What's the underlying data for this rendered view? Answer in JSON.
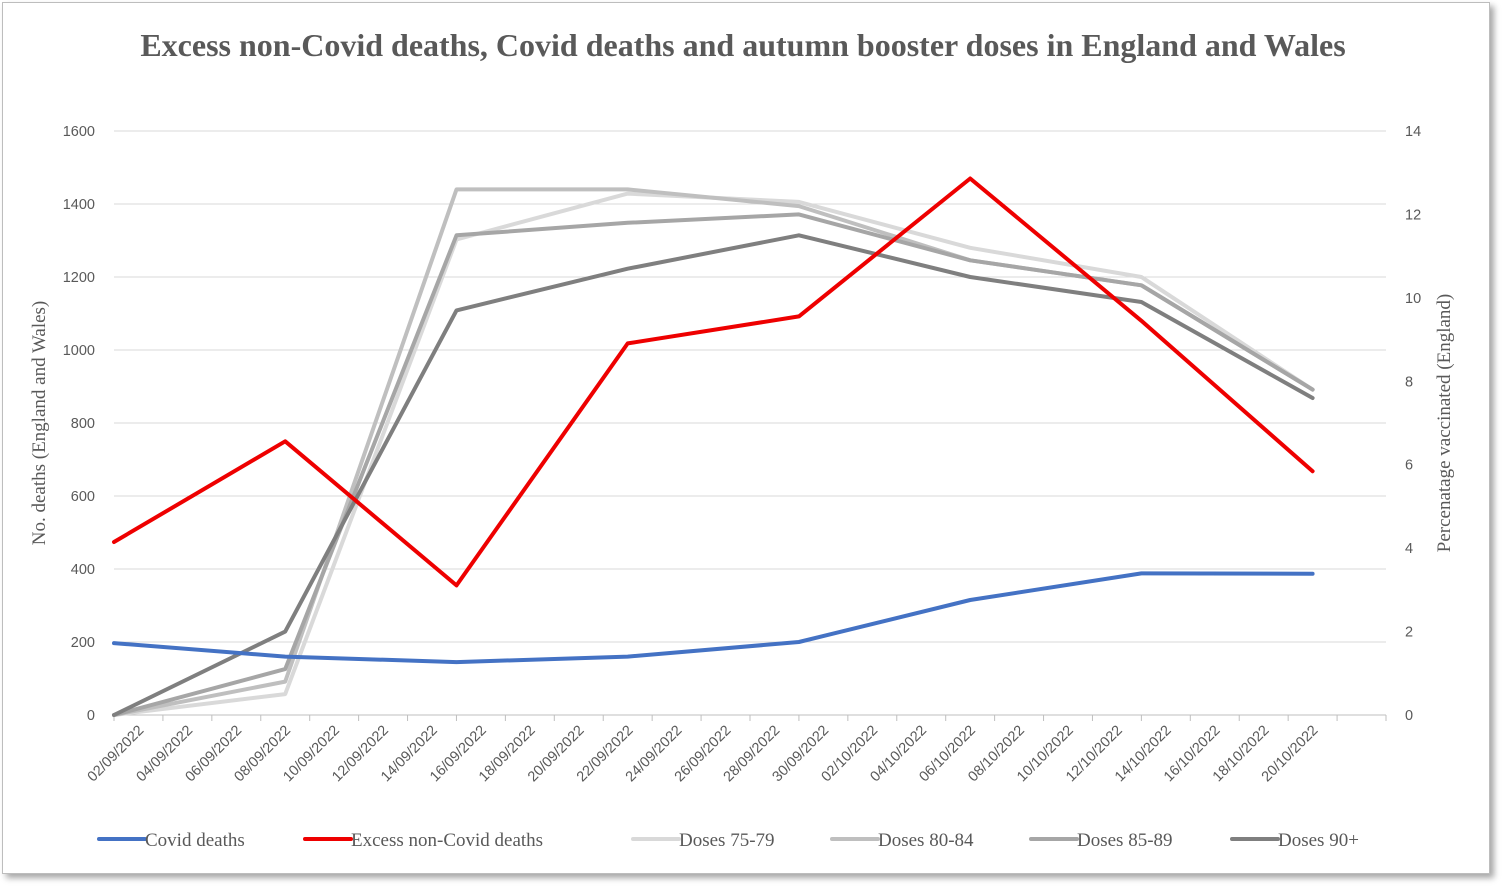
{
  "chart_data": {
    "type": "line",
    "title": "Excess non-Covid deaths, Covid deaths and autumn booster doses in England and Wales",
    "y_left": {
      "label": "No. deaths (England and Wales)",
      "range": [
        0,
        1600
      ],
      "ticks": [
        "0",
        "200",
        "400",
        "600",
        "800",
        "1000",
        "1200",
        "1400",
        "1600"
      ]
    },
    "y_right": {
      "label": "Percenatage vaccinated (England)",
      "range": [
        0,
        14
      ],
      "ticks": [
        "0",
        "2",
        "4",
        "6",
        "8",
        "10",
        "12",
        "14"
      ]
    },
    "x_axis": {
      "type": "date",
      "range": [
        "2022-09-01",
        "2022-10-23"
      ],
      "tick_labels": [
        "02/09/2022",
        "04/09/2022",
        "06/09/2022",
        "08/09/2022",
        "10/09/2022",
        "12/09/2022",
        "14/09/2022",
        "16/09/2022",
        "18/09/2022",
        "20/09/2022",
        "22/09/2022",
        "24/09/2022",
        "26/09/2022",
        "28/09/2022",
        "30/09/2022",
        "02/10/2022",
        "04/10/2022",
        "06/10/2022",
        "08/10/2022",
        "10/10/2022",
        "12/10/2022",
        "14/10/2022",
        "16/10/2022",
        "18/10/2022",
        "20/10/2022"
      ]
    },
    "grid": "horizontal",
    "legend_position": "bottom",
    "x": [
      "2022-09-01",
      "2022-09-08",
      "2022-09-15",
      "2022-09-22",
      "2022-09-29",
      "2022-10-06",
      "2022-10-13",
      "2022-10-20"
    ],
    "series": [
      {
        "name": "Covid deaths",
        "axis": "left",
        "color": "#4472c4",
        "values": [
          197,
          160,
          145,
          160,
          200,
          315,
          388,
          387
        ]
      },
      {
        "name": "Excess non-Covid deaths",
        "axis": "left",
        "color": "#ee0000",
        "values": [
          474,
          750,
          355,
          1018,
          1092,
          1470,
          1080,
          668
        ]
      },
      {
        "name": "Doses 75-79",
        "axis": "right",
        "color": "#d9d9d9",
        "values": [
          0,
          0.5,
          11.4,
          12.5,
          12.3,
          11.2,
          10.5,
          7.8
        ]
      },
      {
        "name": "Doses 80-84",
        "axis": "right",
        "color": "#bfbfbf",
        "values": [
          0,
          0.8,
          12.6,
          12.6,
          12.2,
          10.9,
          10.3,
          7.8
        ]
      },
      {
        "name": "Doses 85-89",
        "axis": "right",
        "color": "#a6a6a6",
        "values": [
          0,
          1.1,
          11.5,
          11.8,
          12.0,
          10.9,
          10.3,
          7.8
        ]
      },
      {
        "name": "Doses 90+",
        "axis": "right",
        "color": "#7f7f7f",
        "values": [
          0,
          2.0,
          9.7,
          10.7,
          11.5,
          10.5,
          9.9,
          7.6
        ]
      }
    ]
  }
}
